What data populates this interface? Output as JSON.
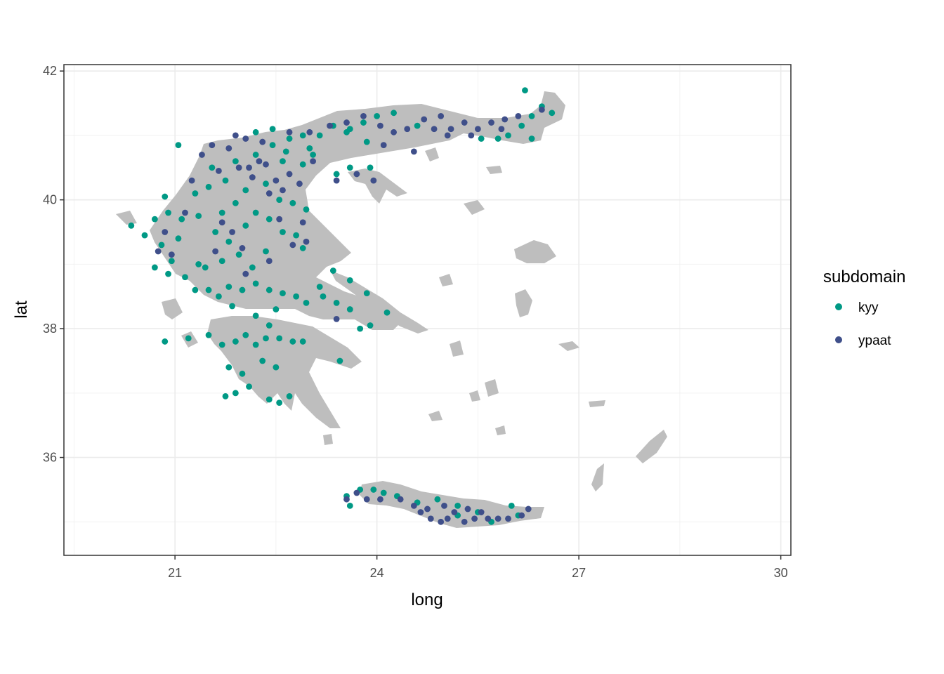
{
  "chart_data": {
    "type": "scatter",
    "title": "",
    "xlabel": "long",
    "ylabel": "lat",
    "xlim": [
      19.35,
      30.15
    ],
    "ylim": [
      34.48,
      42.1
    ],
    "x_ticks": [
      21,
      24,
      27,
      30
    ],
    "y_ticks": [
      36,
      38,
      40,
      42
    ],
    "grid": true,
    "legend": {
      "title": "subdomain",
      "position": "right"
    },
    "background_layer": {
      "name": "Greece map",
      "fill": "#bebebe"
    },
    "series": [
      {
        "name": "kyy",
        "color": "#009985",
        "points": [
          [
            20.35,
            39.6
          ],
          [
            20.55,
            39.45
          ],
          [
            20.7,
            39.7
          ],
          [
            20.9,
            39.8
          ],
          [
            21.1,
            39.7
          ],
          [
            20.8,
            39.3
          ],
          [
            21.05,
            39.4
          ],
          [
            20.95,
            39.05
          ],
          [
            20.7,
            38.95
          ],
          [
            20.9,
            38.85
          ],
          [
            21.15,
            38.8
          ],
          [
            21.3,
            38.6
          ],
          [
            21.5,
            38.6
          ],
          [
            21.65,
            38.5
          ],
          [
            21.8,
            38.65
          ],
          [
            22.0,
            38.6
          ],
          [
            22.2,
            38.7
          ],
          [
            22.4,
            38.6
          ],
          [
            22.6,
            38.55
          ],
          [
            22.8,
            38.5
          ],
          [
            22.95,
            38.4
          ],
          [
            23.2,
            38.5
          ],
          [
            23.4,
            38.4
          ],
          [
            23.6,
            38.3
          ],
          [
            23.85,
            38.55
          ],
          [
            24.15,
            38.25
          ],
          [
            23.45,
            37.5
          ],
          [
            23.9,
            38.05
          ],
          [
            23.75,
            38.0
          ],
          [
            21.2,
            37.85
          ],
          [
            21.5,
            37.9
          ],
          [
            21.7,
            37.75
          ],
          [
            21.9,
            37.8
          ],
          [
            22.05,
            37.9
          ],
          [
            22.2,
            37.75
          ],
          [
            22.35,
            37.85
          ],
          [
            22.55,
            37.85
          ],
          [
            22.75,
            37.8
          ],
          [
            22.9,
            37.8
          ],
          [
            21.8,
            37.4
          ],
          [
            22.0,
            37.3
          ],
          [
            22.1,
            37.1
          ],
          [
            21.9,
            37.0
          ],
          [
            21.75,
            36.95
          ],
          [
            22.4,
            36.9
          ],
          [
            22.55,
            36.85
          ],
          [
            22.7,
            36.95
          ],
          [
            22.3,
            37.5
          ],
          [
            22.5,
            37.4
          ],
          [
            22.2,
            38.2
          ],
          [
            22.4,
            38.05
          ],
          [
            21.45,
            38.95
          ],
          [
            21.7,
            39.05
          ],
          [
            21.95,
            39.15
          ],
          [
            22.15,
            38.95
          ],
          [
            22.35,
            39.2
          ],
          [
            21.6,
            39.5
          ],
          [
            21.8,
            39.35
          ],
          [
            22.05,
            39.6
          ],
          [
            21.35,
            39.75
          ],
          [
            21.7,
            39.8
          ],
          [
            21.9,
            39.95
          ],
          [
            22.2,
            39.8
          ],
          [
            22.4,
            39.7
          ],
          [
            22.6,
            39.5
          ],
          [
            22.8,
            39.45
          ],
          [
            21.5,
            40.2
          ],
          [
            21.3,
            40.1
          ],
          [
            21.75,
            40.3
          ],
          [
            22.05,
            40.15
          ],
          [
            22.35,
            40.25
          ],
          [
            22.55,
            40.0
          ],
          [
            22.75,
            39.95
          ],
          [
            21.55,
            40.5
          ],
          [
            21.9,
            40.6
          ],
          [
            22.2,
            40.7
          ],
          [
            22.45,
            40.85
          ],
          [
            22.7,
            40.95
          ],
          [
            22.9,
            41.0
          ],
          [
            23.15,
            41.0
          ],
          [
            22.2,
            41.05
          ],
          [
            22.45,
            41.1
          ],
          [
            23.35,
            41.15
          ],
          [
            23.6,
            41.1
          ],
          [
            23.8,
            41.2
          ],
          [
            24.0,
            41.3
          ],
          [
            24.25,
            41.35
          ],
          [
            23.85,
            40.9
          ],
          [
            23.55,
            41.05
          ],
          [
            23.0,
            40.8
          ],
          [
            23.6,
            40.5
          ],
          [
            23.4,
            40.4
          ],
          [
            23.9,
            40.5
          ],
          [
            24.6,
            41.15
          ],
          [
            25.55,
            40.95
          ],
          [
            25.8,
            40.95
          ],
          [
            26.15,
            41.15
          ],
          [
            26.3,
            41.3
          ],
          [
            26.45,
            41.45
          ],
          [
            26.6,
            41.35
          ],
          [
            26.2,
            41.7
          ],
          [
            26.3,
            40.95
          ],
          [
            25.95,
            41.0
          ],
          [
            26.0,
            35.25
          ],
          [
            25.5,
            35.15
          ],
          [
            25.2,
            35.25
          ],
          [
            24.9,
            35.35
          ],
          [
            24.6,
            35.3
          ],
          [
            24.3,
            35.4
          ],
          [
            24.1,
            35.45
          ],
          [
            23.95,
            35.5
          ],
          [
            23.75,
            35.5
          ],
          [
            23.55,
            35.4
          ],
          [
            23.6,
            35.25
          ],
          [
            25.7,
            35.0
          ],
          [
            26.1,
            35.1
          ],
          [
            20.85,
            37.8
          ],
          [
            25.2,
            35.1
          ],
          [
            22.9,
            39.25
          ],
          [
            21.05,
            40.85
          ],
          [
            20.85,
            40.05
          ],
          [
            21.35,
            39.0
          ],
          [
            21.85,
            38.35
          ],
          [
            22.5,
            38.3
          ],
          [
            23.15,
            38.65
          ],
          [
            23.35,
            38.9
          ],
          [
            23.6,
            38.75
          ],
          [
            22.6,
            40.6
          ],
          [
            23.05,
            40.7
          ],
          [
            22.65,
            40.75
          ],
          [
            22.9,
            40.55
          ],
          [
            22.95,
            39.85
          ]
        ]
      },
      {
        "name": "ypaat",
        "color": "#3f4f8a",
        "points": [
          [
            21.4,
            40.7
          ],
          [
            21.55,
            40.85
          ],
          [
            21.8,
            40.8
          ],
          [
            22.1,
            40.5
          ],
          [
            22.35,
            40.55
          ],
          [
            22.5,
            40.3
          ],
          [
            22.7,
            40.4
          ],
          [
            22.85,
            40.25
          ],
          [
            21.9,
            41.0
          ],
          [
            22.05,
            40.95
          ],
          [
            22.3,
            40.9
          ],
          [
            22.15,
            40.35
          ],
          [
            22.4,
            40.1
          ],
          [
            23.4,
            40.3
          ],
          [
            23.7,
            40.4
          ],
          [
            23.95,
            40.3
          ],
          [
            23.3,
            41.15
          ],
          [
            23.55,
            41.2
          ],
          [
            23.8,
            41.3
          ],
          [
            24.05,
            41.15
          ],
          [
            24.25,
            41.05
          ],
          [
            24.45,
            41.1
          ],
          [
            24.7,
            41.25
          ],
          [
            24.95,
            41.3
          ],
          [
            25.1,
            41.1
          ],
          [
            25.3,
            41.2
          ],
          [
            25.5,
            41.1
          ],
          [
            25.7,
            41.2
          ],
          [
            25.9,
            41.25
          ],
          [
            26.1,
            41.3
          ],
          [
            26.45,
            41.4
          ],
          [
            24.55,
            40.75
          ],
          [
            24.1,
            40.85
          ],
          [
            25.85,
            41.1
          ],
          [
            25.4,
            41.0
          ],
          [
            25.05,
            41.0
          ],
          [
            24.85,
            41.1
          ],
          [
            20.75,
            39.2
          ],
          [
            20.95,
            39.15
          ],
          [
            21.7,
            39.65
          ],
          [
            21.6,
            39.2
          ],
          [
            22.05,
            38.85
          ],
          [
            22.4,
            39.05
          ],
          [
            22.75,
            39.3
          ],
          [
            22.95,
            39.35
          ],
          [
            23.4,
            38.15
          ],
          [
            23.55,
            35.35
          ],
          [
            23.7,
            35.45
          ],
          [
            23.85,
            35.35
          ],
          [
            24.05,
            35.35
          ],
          [
            24.35,
            35.35
          ],
          [
            24.55,
            35.25
          ],
          [
            24.65,
            35.15
          ],
          [
            24.8,
            35.05
          ],
          [
            24.95,
            35.0
          ],
          [
            25.05,
            35.05
          ],
          [
            25.15,
            35.15
          ],
          [
            25.3,
            35.0
          ],
          [
            25.45,
            35.05
          ],
          [
            25.55,
            35.15
          ],
          [
            25.65,
            35.05
          ],
          [
            25.8,
            35.05
          ],
          [
            25.95,
            35.05
          ],
          [
            26.15,
            35.1
          ],
          [
            26.25,
            35.2
          ],
          [
            25.35,
            35.2
          ],
          [
            25.0,
            35.25
          ],
          [
            24.75,
            35.2
          ],
          [
            20.85,
            39.5
          ],
          [
            21.25,
            40.3
          ],
          [
            21.15,
            39.8
          ],
          [
            21.85,
            39.5
          ],
          [
            22.0,
            39.25
          ],
          [
            22.55,
            39.7
          ],
          [
            22.9,
            39.65
          ],
          [
            21.65,
            40.45
          ],
          [
            21.95,
            40.5
          ],
          [
            22.25,
            40.6
          ],
          [
            22.6,
            40.15
          ],
          [
            23.05,
            40.6
          ],
          [
            23.0,
            41.05
          ],
          [
            22.7,
            41.05
          ]
        ]
      }
    ]
  }
}
